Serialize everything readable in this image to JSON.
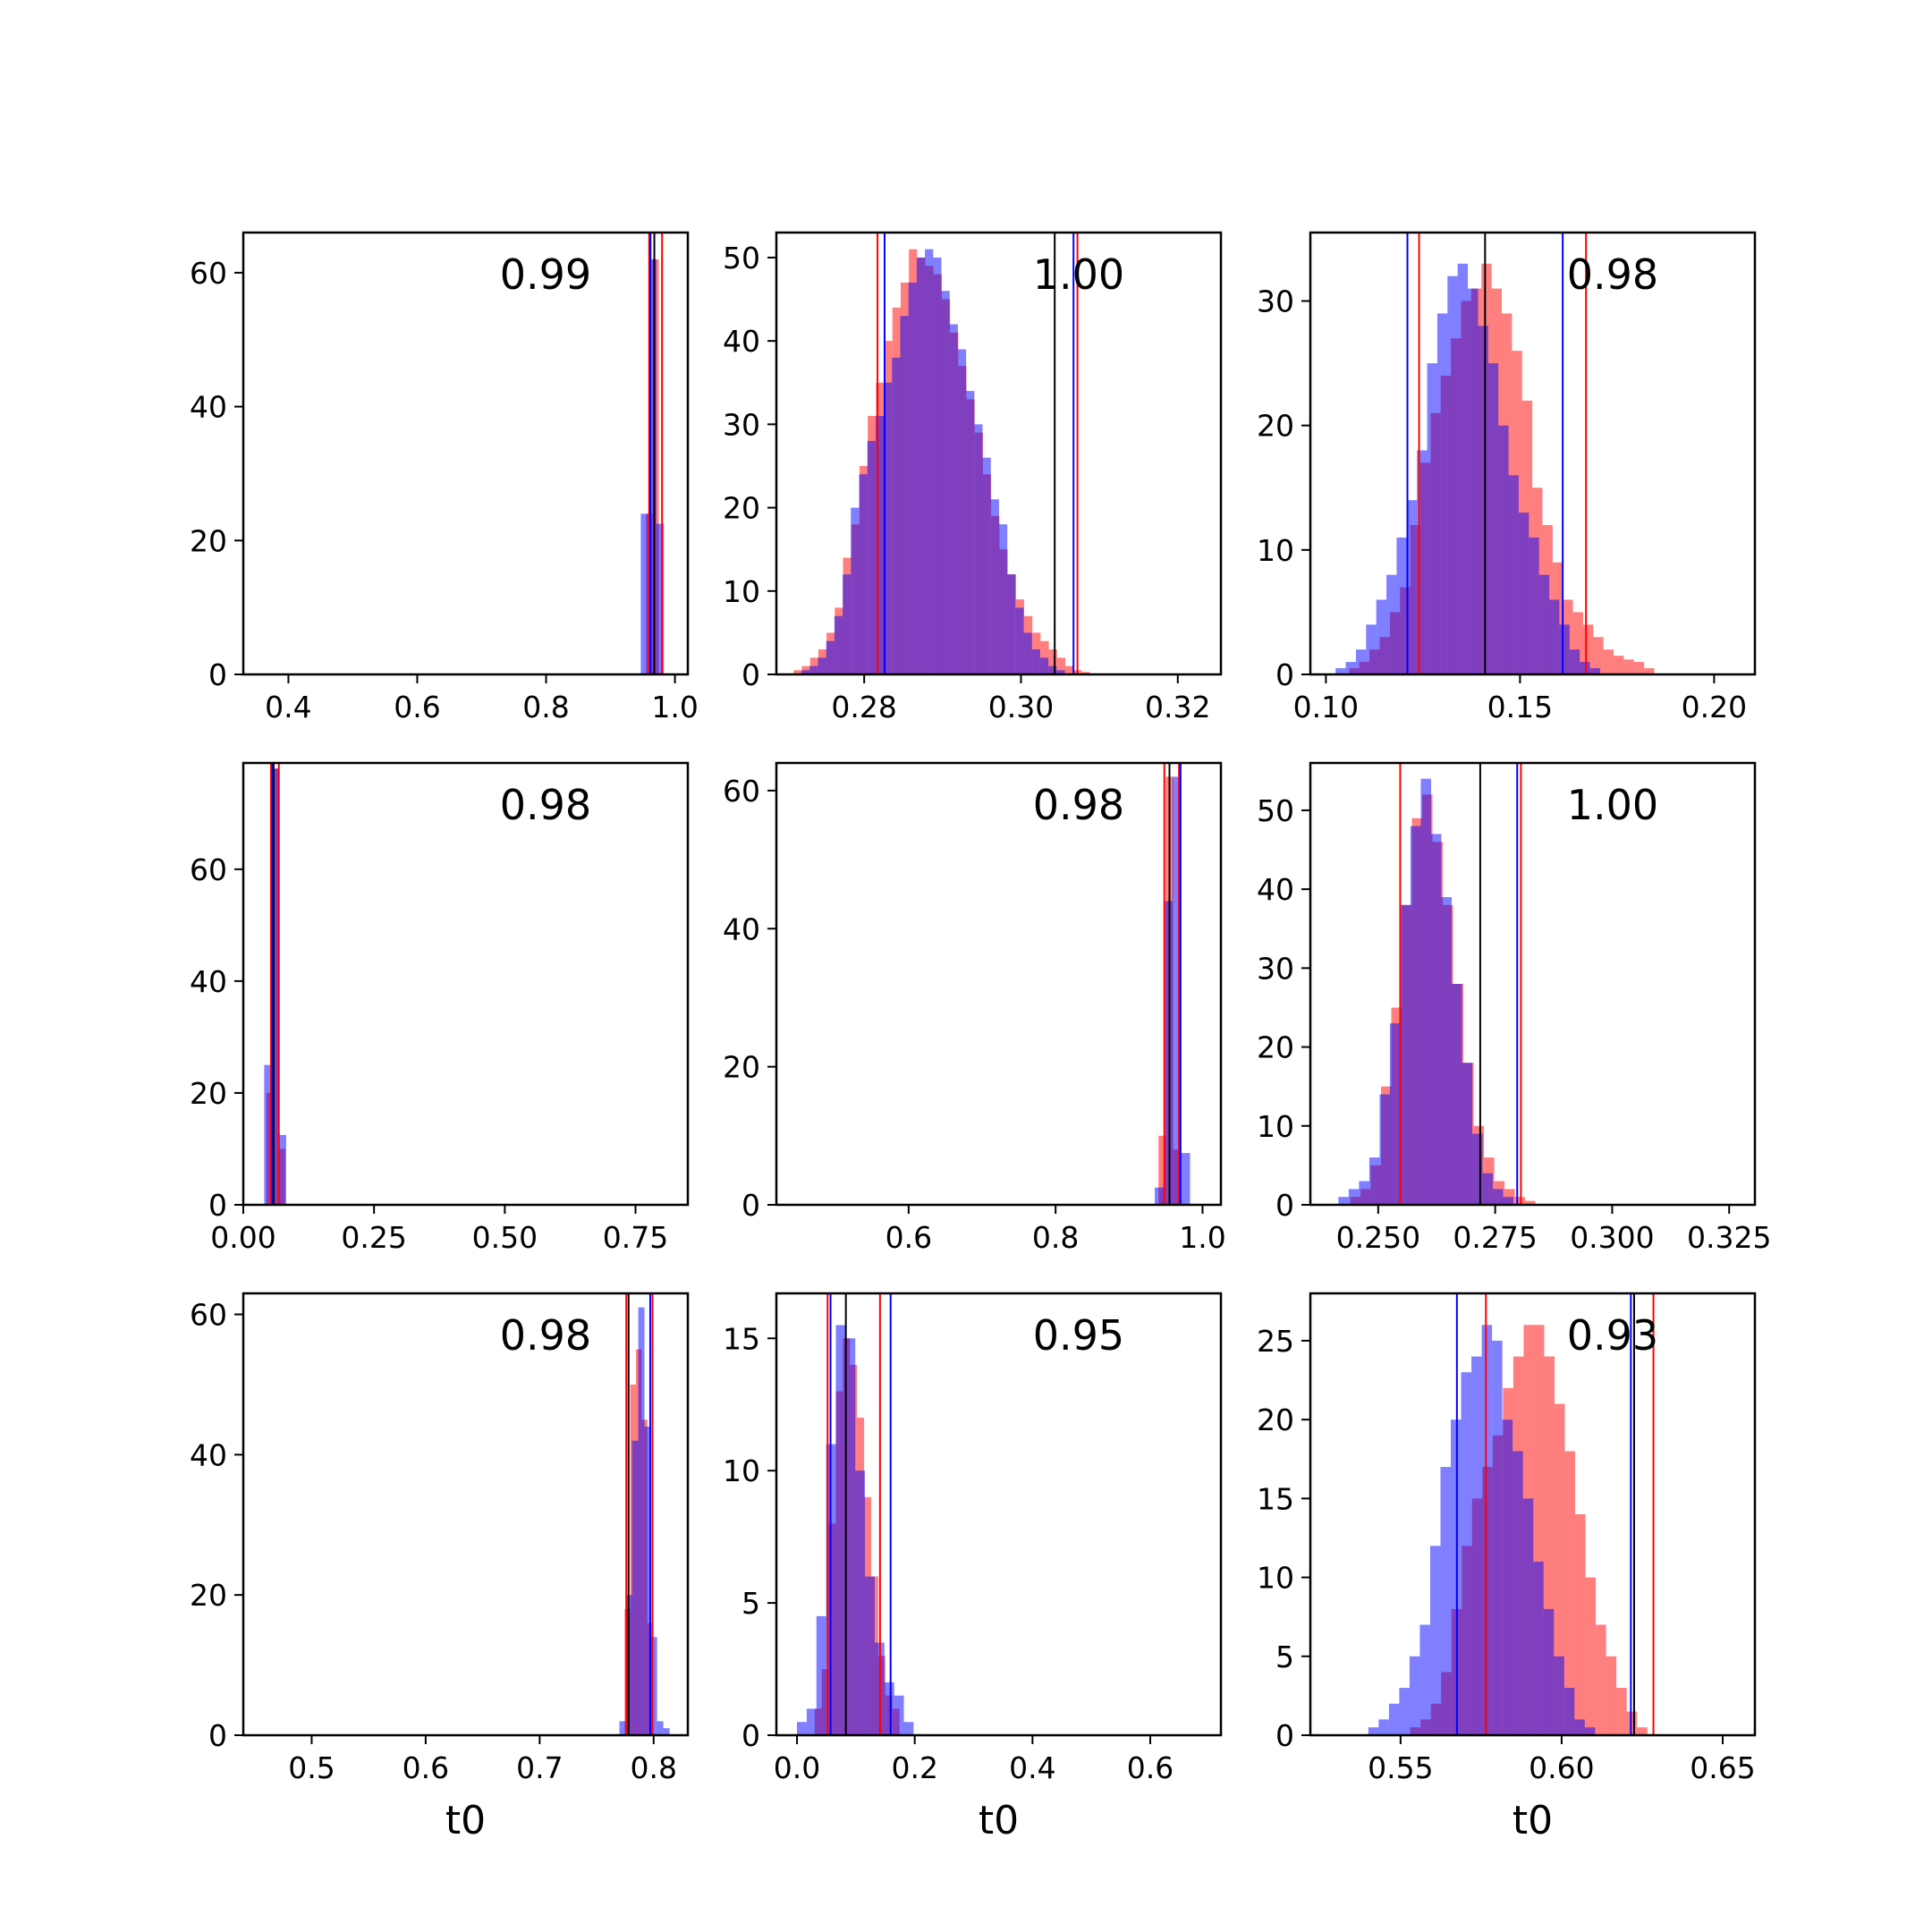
{
  "colors": {
    "red": "#ff0000",
    "blue": "#0000ff",
    "black": "#000000"
  },
  "chart_data": [
    {
      "type": "histogram",
      "annotation": "0.99",
      "xlabel": "",
      "xlim": [
        0.33,
        1.02
      ],
      "ylim": [
        0,
        66
      ],
      "xticks": [
        0.4,
        0.6,
        0.8,
        1.0
      ],
      "xtick_labels": [
        "0.4",
        "0.6",
        "0.8",
        "1.0"
      ],
      "yticks": [
        0,
        20,
        40,
        60
      ],
      "red": {
        "start": 0.955,
        "width": 0.01,
        "values": [
          24,
          62
        ]
      },
      "blue": {
        "start": 0.947,
        "width": 0.012,
        "values": [
          24,
          62,
          22.5
        ]
      },
      "vlines": {
        "red": [
          0.96,
          0.98
        ],
        "blue": [
          0.962
        ],
        "black": [
          0.968
        ]
      }
    },
    {
      "type": "histogram",
      "annotation": "1.00",
      "xlabel": "",
      "xlim": [
        0.2688,
        0.3255
      ],
      "ylim": [
        0,
        53
      ],
      "xticks": [
        0.28,
        0.3,
        0.32
      ],
      "xtick_labels": [
        "0.28",
        "0.30",
        "0.32"
      ],
      "yticks": [
        0,
        10,
        20,
        30,
        40,
        50
      ],
      "red": {
        "start": 0.271,
        "width": 0.00105,
        "values": [
          0.5,
          1,
          2,
          3,
          5,
          8,
          14,
          18,
          25,
          31,
          35,
          40,
          44,
          47,
          51,
          50,
          49,
          48,
          45,
          41,
          37,
          33,
          29,
          24,
          19,
          15,
          12,
          9,
          7,
          5,
          4,
          3,
          2,
          1,
          0.5,
          0.3
        ]
      },
      "blue": {
        "start": 0.272,
        "width": 0.00105,
        "values": [
          0.5,
          1,
          2,
          4,
          7,
          12,
          20,
          24,
          28,
          31,
          35,
          38,
          43,
          47,
          50,
          51,
          50,
          46,
          42,
          39,
          34,
          30,
          26,
          21,
          18,
          12,
          8,
          5,
          3,
          2,
          1,
          0.5
        ]
      },
      "vlines": {
        "red": [
          0.2817,
          0.3072
        ],
        "blue": [
          0.2826,
          0.3067
        ],
        "black": [
          0.3043
        ]
      }
    },
    {
      "type": "histogram",
      "annotation": "0.98",
      "xlabel": "",
      "xlim": [
        0.096,
        0.2105
      ],
      "ylim": [
        0,
        35.5
      ],
      "xticks": [
        0.1,
        0.15,
        0.2
      ],
      "xtick_labels": [
        "0.10",
        "0.15",
        "0.20"
      ],
      "yticks": [
        0,
        10,
        20,
        30
      ],
      "red": {
        "start": 0.106,
        "width": 0.00262,
        "values": [
          0.5,
          1,
          2,
          3,
          5,
          7,
          12,
          17,
          21,
          24,
          27,
          30,
          31,
          33,
          31,
          29,
          26,
          22,
          15,
          12,
          9,
          6,
          5,
          4,
          3,
          2,
          1.5,
          1.2,
          1,
          0.5
        ]
      },
      "blue": {
        "start": 0.1025,
        "width": 0.00262,
        "values": [
          0.5,
          1,
          2,
          4,
          6,
          8,
          11,
          14,
          18,
          25,
          29,
          32,
          33,
          31,
          28,
          25,
          20,
          16,
          13,
          11,
          8,
          6,
          4,
          2,
          1,
          0.5
        ]
      },
      "vlines": {
        "red": [
          0.124,
          0.167
        ],
        "blue": [
          0.121,
          0.161
        ],
        "black": [
          0.141
        ]
      }
    },
    {
      "type": "histogram",
      "annotation": "0.98",
      "xlabel": "",
      "xlim": [
        0.0,
        0.85
      ],
      "ylim": [
        0,
        79
      ],
      "xticks": [
        0.0,
        0.25,
        0.5,
        0.75
      ],
      "xtick_labels": [
        "0.00",
        "0.25",
        "0.50",
        "0.75"
      ],
      "yticks": [
        0,
        20,
        40,
        60
      ],
      "red": {
        "start": 0.044,
        "width": 0.012,
        "values": [
          20,
          78,
          10
        ]
      },
      "blue": {
        "start": 0.04,
        "width": 0.014,
        "values": [
          25,
          78,
          12.5
        ]
      },
      "vlines": {
        "red": [
          0.053,
          0.068
        ],
        "blue": [
          0.056
        ],
        "black": [
          0.058
        ]
      }
    },
    {
      "type": "histogram",
      "annotation": "0.98",
      "xlabel": "",
      "xlim": [
        0.42,
        1.025
      ],
      "ylim": [
        0,
        64
      ],
      "xticks": [
        0.6,
        0.8,
        1.0
      ],
      "xtick_labels": [
        "0.6",
        "0.8",
        "1.0"
      ],
      "yticks": [
        0,
        20,
        40,
        60
      ],
      "red": {
        "start": 0.94,
        "width": 0.01,
        "values": [
          10,
          62,
          8
        ]
      },
      "blue": {
        "start": 0.935,
        "width": 0.012,
        "values": [
          2.5,
          44,
          62,
          7.5
        ]
      },
      "vlines": {
        "red": [
          0.948,
          0.968
        ],
        "blue": [
          0.97
        ],
        "black": [
          0.955
        ]
      }
    },
    {
      "type": "histogram",
      "annotation": "1.00",
      "xlabel": "",
      "xlim": [
        0.2355,
        0.3305
      ],
      "ylim": [
        0,
        56
      ],
      "xticks": [
        0.25,
        0.275,
        0.3,
        0.325
      ],
      "xtick_labels": [
        "0.250",
        "0.275",
        "0.300",
        "0.325"
      ],
      "yticks": [
        0,
        10,
        20,
        30,
        40,
        50
      ],
      "red": {
        "start": 0.244,
        "width": 0.0022,
        "values": [
          1,
          2,
          5,
          15,
          25,
          38,
          49,
          52,
          46,
          38,
          28,
          18,
          10,
          6,
          3,
          2,
          1,
          0.5
        ]
      },
      "blue": {
        "start": 0.2415,
        "width": 0.0022,
        "values": [
          1,
          2,
          3,
          6,
          14,
          23,
          38,
          48,
          54,
          47,
          39,
          28,
          18,
          9,
          4,
          2,
          1
        ]
      },
      "vlines": {
        "red": [
          0.2547,
          0.2805
        ],
        "blue": [
          0.2797
        ],
        "black": [
          0.2718
        ]
      }
    },
    {
      "type": "histogram",
      "annotation": "0.98",
      "xlabel": "t0",
      "xlim": [
        0.44,
        0.83
      ],
      "ylim": [
        0,
        63
      ],
      "xticks": [
        0.5,
        0.6,
        0.7,
        0.8
      ],
      "xtick_labels": [
        "0.5",
        "0.6",
        "0.7",
        "0.8"
      ],
      "yticks": [
        0,
        20,
        40,
        60
      ],
      "red": {
        "start": 0.7745,
        "width": 0.005,
        "values": [
          18,
          50,
          55,
          45,
          16
        ]
      },
      "blue": {
        "start": 0.77,
        "width": 0.0055,
        "values": [
          2,
          20,
          42,
          61,
          44,
          14,
          2,
          1
        ]
      },
      "vlines": {
        "red": [
          0.776,
          0.799
        ],
        "blue": [
          0.797
        ],
        "black": [
          0.778
        ]
      }
    },
    {
      "type": "histogram",
      "annotation": "0.95",
      "xlabel": "t0",
      "xlim": [
        -0.035,
        0.72
      ],
      "ylim": [
        0,
        16.7
      ],
      "xticks": [
        0.0,
        0.2,
        0.4,
        0.6
      ],
      "xtick_labels": [
        "0.0",
        "0.2",
        "0.4",
        "0.6"
      ],
      "yticks": [
        0,
        5,
        10,
        15
      ],
      "red": {
        "start": 0.03,
        "width": 0.012,
        "values": [
          1,
          2.5,
          8,
          13,
          15,
          14,
          12,
          9,
          6,
          3,
          1.5,
          1
        ]
      },
      "blue": {
        "start": 0.0,
        "width": 0.0165,
        "values": [
          0.5,
          1,
          4.5,
          11,
          15.5,
          15,
          10,
          6,
          3.5,
          2,
          1.5,
          0.5
        ]
      },
      "vlines": {
        "red": [
          0.052,
          0.141
        ],
        "blue": [
          0.057,
          0.159
        ],
        "black": [
          0.083
        ]
      }
    },
    {
      "type": "histogram",
      "annotation": "0.93",
      "xlabel": "t0",
      "xlim": [
        0.522,
        0.66
      ],
      "ylim": [
        0,
        28
      ],
      "xticks": [
        0.55,
        0.6,
        0.65
      ],
      "xtick_labels": [
        "0.55",
        "0.60",
        "0.65"
      ],
      "yticks": [
        0,
        5,
        10,
        15,
        20,
        25
      ],
      "red": {
        "start": 0.553,
        "width": 0.0032,
        "values": [
          0.5,
          1,
          2,
          4,
          8,
          12,
          15,
          17,
          19,
          22,
          24,
          26,
          26,
          24,
          21,
          18,
          14,
          10,
          7,
          5,
          3,
          1.5,
          0.5
        ]
      },
      "blue": {
        "start": 0.54,
        "width": 0.0032,
        "values": [
          0.5,
          1,
          2,
          3,
          5,
          7,
          12,
          17,
          20,
          23,
          24,
          26,
          25,
          20,
          18,
          15,
          11,
          8,
          5,
          3,
          1,
          0.5
        ]
      },
      "vlines": {
        "red": [
          0.5765,
          0.6285
        ],
        "blue": [
          0.5675,
          0.6215
        ],
        "black": [
          0.6225
        ]
      }
    }
  ]
}
